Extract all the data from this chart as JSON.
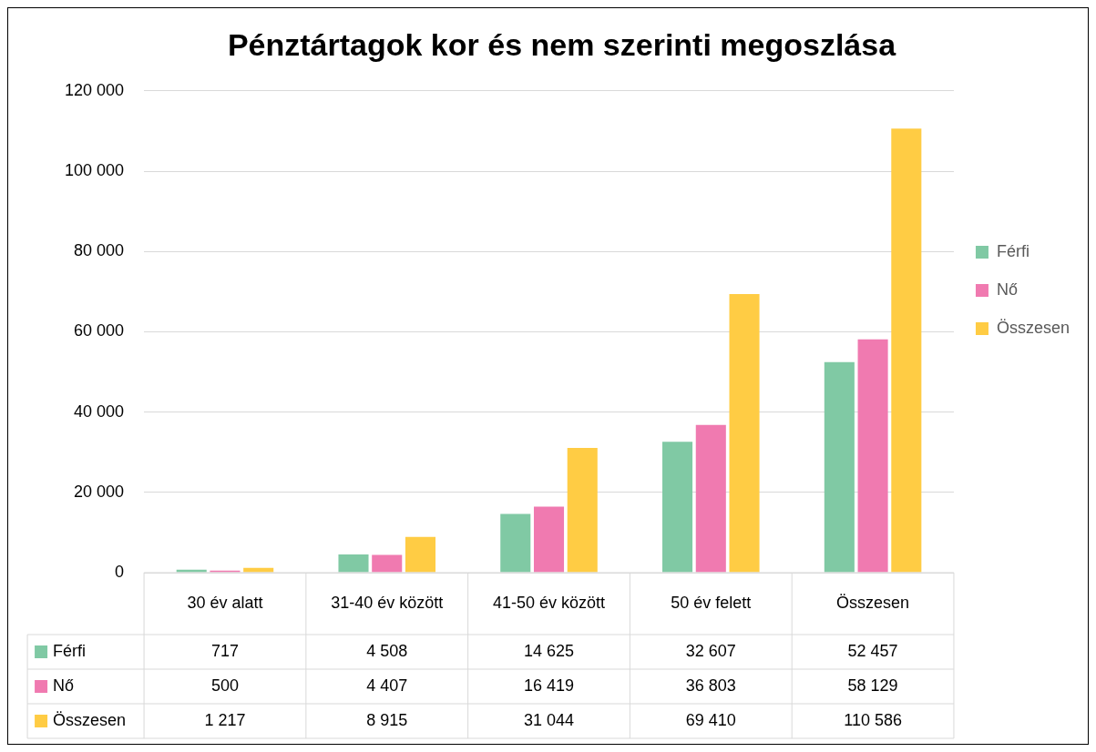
{
  "chart_data": {
    "type": "bar",
    "title": "Pénztártagok kor és nem szerinti megoszlása",
    "categories": [
      "30 év alatt",
      "31-40 év között",
      "41-50 év között",
      "50 év felett",
      "Összesen"
    ],
    "series": [
      {
        "name": "Férfi",
        "color": "#80c9a4",
        "values": [
          717,
          4508,
          14625,
          32607,
          52457
        ],
        "value_labels": [
          "717",
          "4 508",
          "14 625",
          "32 607",
          "52 457"
        ]
      },
      {
        "name": "Nő",
        "color": "#f07ab0",
        "values": [
          500,
          4407,
          16419,
          36803,
          58129
        ],
        "value_labels": [
          "500",
          "4 407",
          "16 419",
          "36 803",
          "58 129"
        ]
      },
      {
        "name": "Összesen",
        "color": "#ffcc44",
        "values": [
          1217,
          8915,
          31044,
          69410,
          110586
        ],
        "value_labels": [
          "1 217",
          "8 915",
          "31 044",
          "69 410",
          "110 586"
        ]
      }
    ],
    "ylim": [
      0,
      120000
    ],
    "yticks": [
      0,
      {
        "value": 20000,
        "label": "20 000"
      },
      {
        "value": 40000,
        "label": "40 000"
      },
      {
        "value": 60000,
        "label": "60 000"
      },
      {
        "value": 80000,
        "label": "80 000"
      },
      {
        "value": 100000,
        "label": "100 000"
      },
      {
        "value": 120000,
        "label": "120 000"
      }
    ],
    "grid": "y",
    "legend": "right"
  }
}
